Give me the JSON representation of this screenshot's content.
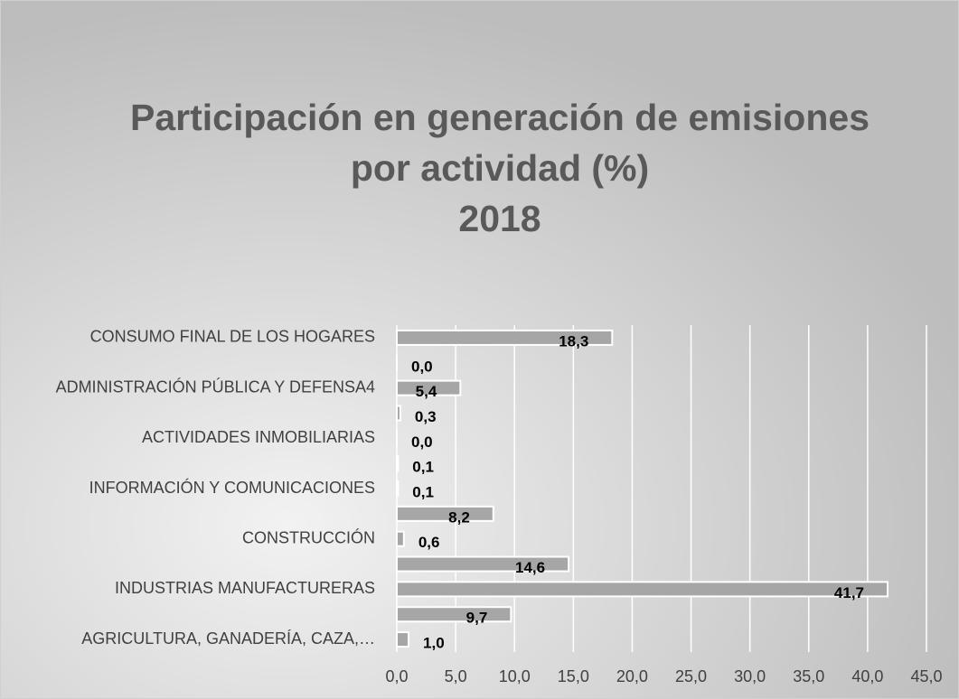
{
  "chart_data": {
    "type": "hbar",
    "title": [
      "Participación en generación de emisiones",
      "por actividad (%)",
      "2018"
    ],
    "categories": [
      "AGRICULTURA, GANADERÍA, CAZA,…",
      null,
      "INDUSTRIAS MANUFACTURERAS",
      null,
      "CONSTRUCCIÓN",
      null,
      "INFORMACIÓN Y COMUNICACIONES",
      null,
      "ACTIVIDADES INMOBILIARIAS",
      null,
      "ADMINISTRACIÓN PÚBLICA Y DEFENSA4",
      null,
      "CONSUMO FINAL DE LOS HOGARES"
    ],
    "values": [
      1.0,
      9.7,
      41.7,
      14.6,
      0.6,
      8.2,
      0.1,
      0.1,
      0.0,
      0.3,
      5.4,
      0.0,
      18.3
    ],
    "value_labels": [
      "1,0",
      "9,7",
      "41,7",
      "14,6",
      "0,6",
      "8,2",
      "0,1",
      "0,1",
      "0,0",
      "0,3",
      "5,4",
      "0,0",
      "18,3"
    ],
    "color": "#a6a6a6",
    "xlim": [
      0,
      45
    ],
    "xticks": [
      {
        "value": 0,
        "label": "0,0"
      },
      {
        "value": 5,
        "label": "5,0"
      },
      {
        "value": 10,
        "label": "10,0"
      },
      {
        "value": 15,
        "label": "15,0"
      },
      {
        "value": 20,
        "label": "20,0"
      },
      {
        "value": 25,
        "label": "25,0"
      },
      {
        "value": 30,
        "label": "30,0"
      },
      {
        "value": 35,
        "label": "35,0"
      },
      {
        "value": 40,
        "label": "40,0"
      },
      {
        "value": 45,
        "label": "45,0"
      }
    ],
    "grid": true
  }
}
